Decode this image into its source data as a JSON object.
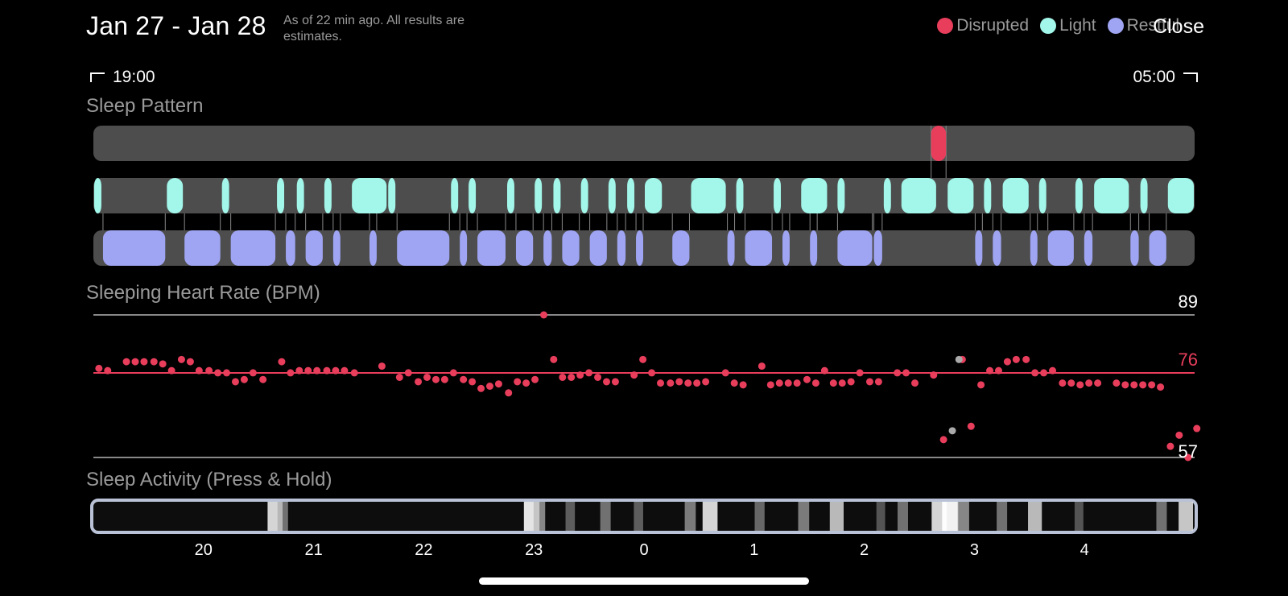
{
  "header": {
    "date_range": "Jan 27 - Jan 28",
    "as_of": "As of 22 min ago. All results are estimates.",
    "legend": [
      {
        "label": "Disrupted",
        "color": "#e83e5c"
      },
      {
        "label": "Light",
        "color": "#a3f7ea"
      },
      {
        "label": "Restful",
        "color": "#9fa5f3"
      }
    ],
    "close_label": "Close"
  },
  "timeline": {
    "start": "19:00",
    "end": "05:00"
  },
  "sections": {
    "sleep_pattern": "Sleep Pattern",
    "heart_rate": "Sleeping Heart Rate (BPM)",
    "activity": "Sleep Activity (Press & Hold)"
  },
  "heart_rate": {
    "max": "89",
    "avg": "76",
    "min": "57"
  },
  "hour_ticks": [
    "20",
    "21",
    "22",
    "23",
    "0",
    "1",
    "2",
    "3",
    "4"
  ],
  "colors": {
    "disrupted": "#e83e5c",
    "light": "#a3f7ea",
    "restful": "#9fa5f3",
    "track": "#4d4d4d"
  },
  "sleep_pattern": {
    "unit": "hours since 19:00",
    "disrupted": [
      [
        7.6,
        7.75
      ]
    ],
    "light": [
      [
        0,
        0.08
      ],
      [
        0.66,
        0.82
      ],
      [
        1.16,
        1.24
      ],
      [
        1.66,
        1.74
      ],
      [
        1.84,
        1.92
      ],
      [
        2.09,
        2.17
      ],
      [
        2.34,
        2.67
      ],
      [
        2.67,
        2.75
      ],
      [
        3.24,
        3.32
      ],
      [
        3.4,
        3.48
      ],
      [
        3.75,
        3.83
      ],
      [
        4.0,
        4.08
      ],
      [
        4.17,
        4.25
      ],
      [
        4.42,
        4.5
      ],
      [
        4.67,
        4.75
      ],
      [
        4.84,
        4.92
      ],
      [
        5.0,
        5.17
      ],
      [
        5.42,
        5.75
      ],
      [
        5.83,
        5.91
      ],
      [
        6.17,
        6.25
      ],
      [
        6.42,
        6.67
      ],
      [
        6.75,
        6.83
      ],
      [
        7.17,
        7.25
      ],
      [
        7.33,
        7.66
      ],
      [
        7.75,
        8.0
      ],
      [
        8.08,
        8.16
      ],
      [
        8.25,
        8.5
      ],
      [
        8.58,
        8.66
      ],
      [
        8.91,
        8.99
      ],
      [
        9.08,
        9.41
      ],
      [
        9.5,
        9.58
      ],
      [
        9.75,
        10.0
      ]
    ],
    "restful": [
      [
        0.08,
        0.66
      ],
      [
        0.82,
        1.16
      ],
      [
        1.24,
        1.66
      ],
      [
        1.74,
        1.84
      ],
      [
        1.92,
        2.09
      ],
      [
        2.17,
        2.25
      ],
      [
        2.5,
        2.58
      ],
      [
        2.75,
        3.24
      ],
      [
        3.32,
        3.4
      ],
      [
        3.48,
        3.75
      ],
      [
        3.83,
        4.0
      ],
      [
        4.08,
        4.17
      ],
      [
        4.25,
        4.42
      ],
      [
        4.5,
        4.67
      ],
      [
        4.75,
        4.84
      ],
      [
        4.92,
        5.0
      ],
      [
        5.25,
        5.42
      ],
      [
        5.75,
        5.83
      ],
      [
        5.91,
        6.17
      ],
      [
        6.25,
        6.33
      ],
      [
        6.5,
        6.58
      ],
      [
        6.75,
        7.08
      ],
      [
        7.08,
        7.17
      ],
      [
        8.0,
        8.08
      ],
      [
        8.16,
        8.25
      ],
      [
        8.5,
        8.58
      ],
      [
        8.66,
        8.91
      ],
      [
        8.99,
        9.08
      ],
      [
        9.41,
        9.5
      ],
      [
        9.58,
        9.75
      ]
    ]
  },
  "hr_points": {
    "unit": "bpm vs hours since 19:00",
    "red": [
      [
        0.05,
        77
      ],
      [
        0.13,
        76.5
      ],
      [
        0.3,
        78.5
      ],
      [
        0.38,
        78.5
      ],
      [
        0.46,
        78.5
      ],
      [
        0.55,
        78.5
      ],
      [
        0.63,
        78
      ],
      [
        0.71,
        76.5
      ],
      [
        0.8,
        79
      ],
      [
        0.88,
        78.5
      ],
      [
        0.96,
        76.5
      ],
      [
        1.05,
        76.5
      ],
      [
        1.13,
        76
      ],
      [
        1.21,
        76
      ],
      [
        1.29,
        74
      ],
      [
        1.37,
        74.5
      ],
      [
        1.45,
        76
      ],
      [
        1.54,
        74.5
      ],
      [
        1.71,
        78.5
      ],
      [
        1.79,
        76
      ],
      [
        1.87,
        76.5
      ],
      [
        1.95,
        76.5
      ],
      [
        2.03,
        76.5
      ],
      [
        2.12,
        76.5
      ],
      [
        2.2,
        76.5
      ],
      [
        2.28,
        76.5
      ],
      [
        2.37,
        76
      ],
      [
        2.62,
        77.5
      ],
      [
        2.78,
        75
      ],
      [
        2.86,
        76
      ],
      [
        2.95,
        74
      ],
      [
        3.03,
        75
      ],
      [
        3.11,
        74.5
      ],
      [
        3.19,
        74.5
      ],
      [
        3.27,
        76
      ],
      [
        3.36,
        74.5
      ],
      [
        3.44,
        74
      ],
      [
        3.52,
        72.5
      ],
      [
        3.6,
        73
      ],
      [
        3.68,
        73.5
      ],
      [
        3.77,
        71.5
      ],
      [
        3.85,
        74
      ],
      [
        3.93,
        73.7
      ],
      [
        4.01,
        74.5
      ],
      [
        4.09,
        89
      ],
      [
        4.18,
        79
      ],
      [
        4.26,
        75
      ],
      [
        4.34,
        75
      ],
      [
        4.42,
        75.5
      ],
      [
        4.5,
        76
      ],
      [
        4.58,
        75
      ],
      [
        4.66,
        74
      ],
      [
        4.74,
        74
      ],
      [
        4.91,
        75.5
      ],
      [
        4.99,
        79
      ],
      [
        5.07,
        76
      ],
      [
        5.15,
        73.7
      ],
      [
        5.24,
        73.7
      ],
      [
        5.32,
        74
      ],
      [
        5.4,
        73.7
      ],
      [
        5.48,
        73.7
      ],
      [
        5.56,
        74
      ],
      [
        5.74,
        76
      ],
      [
        5.82,
        73.7
      ],
      [
        5.9,
        73.3
      ],
      [
        6.07,
        77.5
      ],
      [
        6.15,
        73.3
      ],
      [
        6.23,
        73.7
      ],
      [
        6.31,
        73.7
      ],
      [
        6.39,
        73.7
      ],
      [
        6.48,
        74.5
      ],
      [
        6.56,
        73.7
      ],
      [
        6.64,
        76.5
      ],
      [
        6.72,
        73.7
      ],
      [
        6.8,
        73.7
      ],
      [
        6.88,
        74
      ],
      [
        6.96,
        76
      ],
      [
        7.05,
        74
      ],
      [
        7.13,
        74
      ],
      [
        7.3,
        76
      ],
      [
        7.38,
        76
      ],
      [
        7.46,
        73.7
      ],
      [
        7.63,
        75.5
      ],
      [
        7.72,
        61
      ],
      [
        7.89,
        79
      ],
      [
        7.97,
        64
      ],
      [
        8.06,
        73.3
      ],
      [
        8.14,
        76.5
      ],
      [
        8.22,
        76.5
      ],
      [
        8.3,
        78.5
      ],
      [
        8.38,
        79
      ],
      [
        8.47,
        79
      ],
      [
        8.55,
        76
      ],
      [
        8.63,
        76
      ],
      [
        8.71,
        76.5
      ],
      [
        8.8,
        73.7
      ],
      [
        8.88,
        73.7
      ],
      [
        8.96,
        73.3
      ],
      [
        9.04,
        73.7
      ],
      [
        9.12,
        73.7
      ],
      [
        9.29,
        73.7
      ],
      [
        9.37,
        73.3
      ],
      [
        9.45,
        73.3
      ],
      [
        9.53,
        73.3
      ],
      [
        9.61,
        73.3
      ],
      [
        9.69,
        72.8
      ],
      [
        9.78,
        59.5
      ],
      [
        9.86,
        62
      ],
      [
        9.94,
        57
      ],
      [
        10.02,
        63.5
      ]
    ],
    "gray": [
      [
        7.86,
        79
      ],
      [
        7.8,
        63
      ]
    ]
  },
  "activity_peaks": [
    [
      1.65,
      0.9
    ],
    [
      1.72,
      0.5
    ],
    [
      3.98,
      0.95
    ],
    [
      4.05,
      0.6
    ],
    [
      4.33,
      0.4
    ],
    [
      4.65,
      0.5
    ],
    [
      4.95,
      0.4
    ],
    [
      5.42,
      0.55
    ],
    [
      5.6,
      0.9
    ],
    [
      6.05,
      0.45
    ],
    [
      6.45,
      0.55
    ],
    [
      6.75,
      0.8
    ],
    [
      7.15,
      0.35
    ],
    [
      7.35,
      0.5
    ],
    [
      7.68,
      0.9
    ],
    [
      7.78,
      1.0
    ],
    [
      7.9,
      0.6
    ],
    [
      8.25,
      0.5
    ],
    [
      8.55,
      0.8
    ],
    [
      8.95,
      0.35
    ],
    [
      9.7,
      0.5
    ],
    [
      9.92,
      0.85
    ]
  ]
}
